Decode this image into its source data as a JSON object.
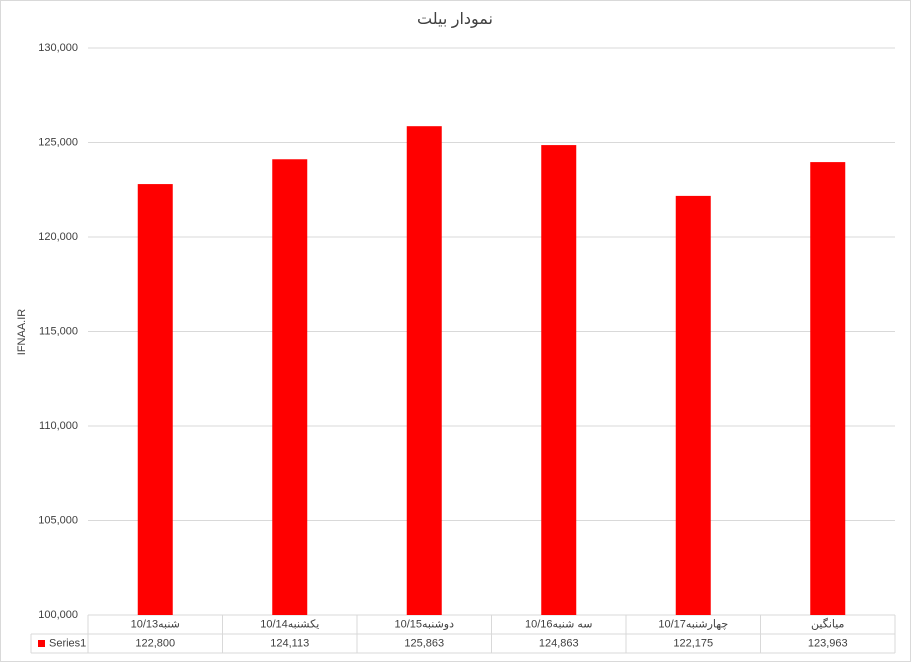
{
  "chart_data": {
    "type": "bar",
    "title": "نمودار بیلت",
    "y_label": "IFNAA.IR",
    "categories": [
      "شنبه10/13",
      "یکشنبه10/14",
      "دوشنبه10/15",
      "سه شنبه10/16",
      "چهارشنبه10/17",
      "میانگین"
    ],
    "series": [
      {
        "name": "Series1",
        "color": "#ff0000",
        "values": [
          122800,
          124113,
          125863,
          124863,
          122175,
          123963
        ],
        "value_labels": [
          "122,800",
          "124,113",
          "125,863",
          "124,863",
          "122,175",
          "123,963"
        ]
      }
    ],
    "ylim": [
      100000,
      130000
    ],
    "yticks": [
      {
        "value": 100000,
        "label": "100,000"
      },
      {
        "value": 105000,
        "label": "105,000"
      },
      {
        "value": 110000,
        "label": "110,000"
      },
      {
        "value": 115000,
        "label": "115,000"
      },
      {
        "value": 120000,
        "label": "120,000"
      },
      {
        "value": 125000,
        "label": "125,000"
      },
      {
        "value": 130000,
        "label": "130,000"
      }
    ],
    "grid": true
  }
}
